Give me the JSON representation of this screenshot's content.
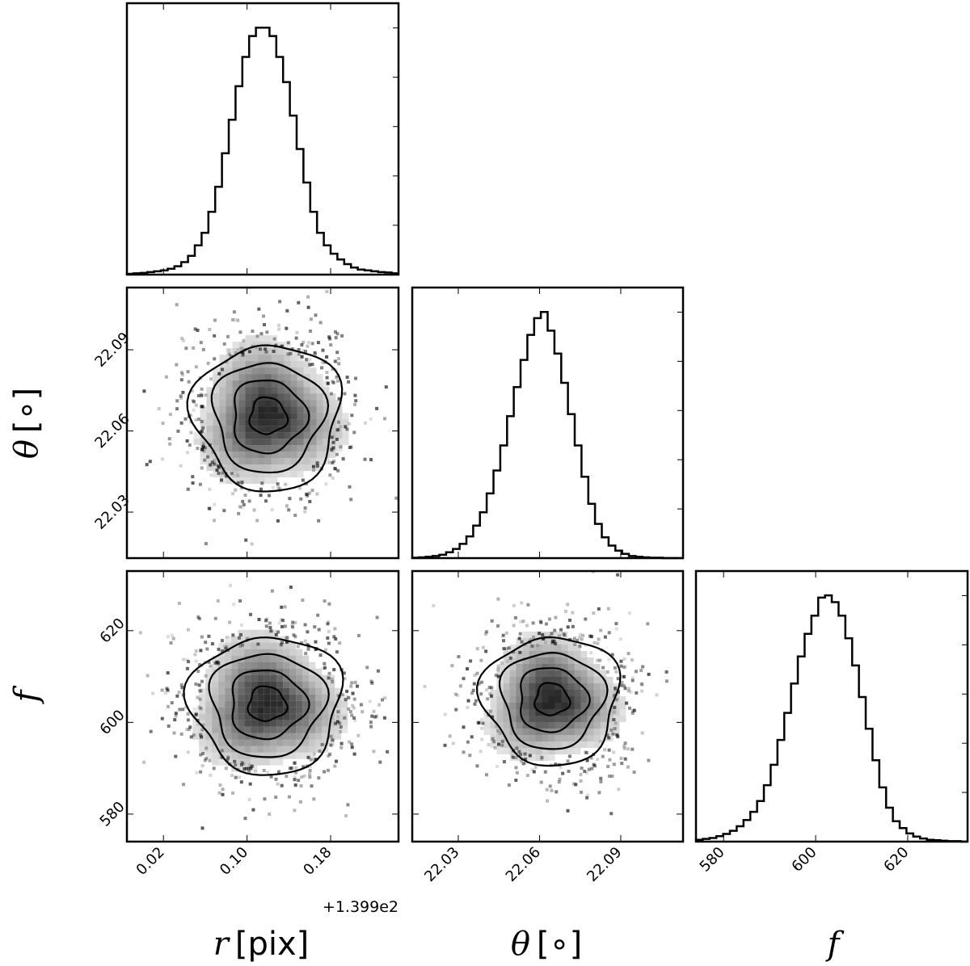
{
  "chart_data": {
    "type": "corner",
    "parameters": [
      {
        "key": "r",
        "label_symbol": "r",
        "label_unit": "[pix]",
        "range": [
          -0.015,
          0.245
        ],
        "ticks": [
          0.02,
          0.1,
          0.18
        ],
        "tick_labels": [
          "0.02",
          "0.10",
          "0.18"
        ],
        "offset_text": "+1.399e2",
        "histogram": {
          "bin_start": -0.015,
          "bin_width": 0.0065,
          "counts": [
            2,
            3,
            4,
            6,
            8,
            10,
            14,
            20,
            30,
            45,
            70,
            100,
            150,
            210,
            290,
            370,
            450,
            520,
            570,
            590,
            590,
            570,
            520,
            460,
            380,
            300,
            220,
            150,
            100,
            70,
            50,
            36,
            25,
            17,
            12,
            10,
            8,
            6,
            5,
            3
          ]
        }
      },
      {
        "key": "theta",
        "label_symbol": "θ",
        "label_unit": "[∘]",
        "range": [
          22.013,
          22.113
        ],
        "ticks": [
          22.03,
          22.06,
          22.09
        ],
        "tick_labels": [
          "22.03",
          "22.06",
          "22.09"
        ],
        "offset_text": "",
        "histogram": {
          "bin_start": 22.013,
          "bin_width": 0.0025,
          "counts": [
            1,
            2,
            3,
            5,
            8,
            14,
            22,
            34,
            52,
            78,
            110,
            155,
            210,
            270,
            340,
            410,
            475,
            535,
            575,
            590,
            545,
            490,
            420,
            345,
            270,
            195,
            130,
            82,
            50,
            30,
            18,
            10,
            5,
            3,
            2,
            1,
            1,
            0,
            0,
            0
          ]
        }
      },
      {
        "key": "f",
        "label_symbol": "f",
        "label_unit": "",
        "range": [
          574,
          633
        ],
        "ticks": [
          580,
          600,
          620
        ],
        "tick_labels": [
          "580",
          "600",
          "620"
        ],
        "offset_text": "",
        "histogram": {
          "bin_start": 574,
          "bin_width": 1.475,
          "counts": [
            4,
            6,
            8,
            12,
            17,
            24,
            34,
            48,
            66,
            90,
            125,
            170,
            225,
            285,
            350,
            410,
            460,
            500,
            540,
            545,
            530,
            500,
            450,
            390,
            320,
            250,
            180,
            120,
            75,
            45,
            30,
            18,
            11,
            7,
            4,
            3,
            2,
            1,
            1,
            0
          ]
        }
      }
    ],
    "joint_panels": [
      {
        "x": "r",
        "y": "theta",
        "peak": [
          0.12,
          22.0655
        ],
        "sigma": [
          0.035,
          0.0135
        ],
        "contour_levels": 4
      },
      {
        "x": "r",
        "y": "f",
        "peak": [
          0.119,
          604.0
        ],
        "sigma": [
          0.036,
          7.5
        ],
        "contour_levels": 4
      },
      {
        "x": "theta",
        "y": "f",
        "peak": [
          22.0645,
          605.0
        ],
        "sigma": [
          0.0125,
          7.0
        ],
        "contour_levels": 4
      }
    ],
    "grid": false,
    "colors": {
      "line": "#000000",
      "density": "#000000",
      "background": "#ffffff"
    }
  }
}
